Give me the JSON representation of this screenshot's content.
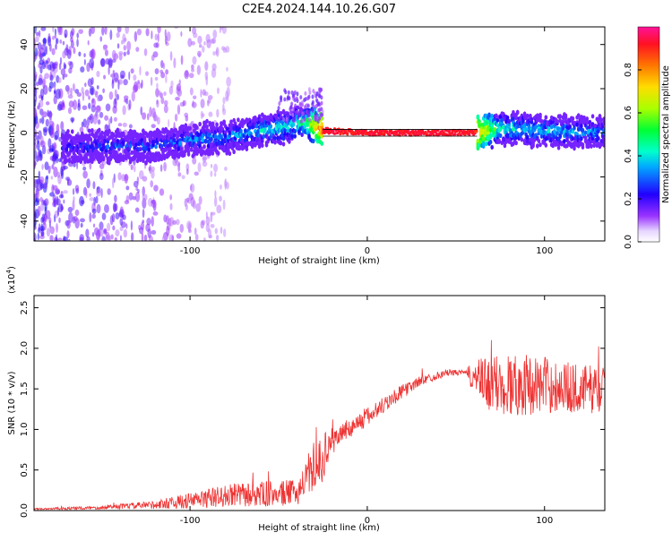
{
  "figure": {
    "title": "C2E4.2024.144.10.26.G07"
  },
  "chart_data": [
    {
      "type": "heatmap",
      "xlabel": "Height of straight line (km)",
      "ylabel": "Frequency (Hz)",
      "xlim": [
        -188,
        134
      ],
      "ylim": [
        -49,
        48
      ],
      "x_ticks": [
        -100,
        0,
        100
      ],
      "y_ticks": [
        -40,
        -20,
        0,
        20,
        40
      ],
      "colorbar": {
        "label": "Normalized spectral amplitude",
        "range": [
          0.0,
          1.0
        ],
        "ticks": [
          "0.0",
          "0.2",
          "0.4",
          "0.6",
          "0.8"
        ],
        "tick_values": [
          0.0,
          0.2,
          0.4,
          0.6,
          0.8
        ],
        "colors": [
          "#ffffff",
          "#7a00ff",
          "#0000ff",
          "#00ffff",
          "#00ff00",
          "#ffff00",
          "#ff8800",
          "#ff0000",
          "#ff00aa"
        ]
      },
      "ridge": {
        "x": [
          -172,
          -150,
          -120,
          -100,
          -80,
          -60,
          -45,
          -35,
          -25,
          0,
          30,
          60,
          75,
          100,
          134
        ],
        "center_freq": [
          -7,
          -6,
          -6,
          -3,
          -2,
          1,
          3,
          5,
          1,
          0,
          0,
          0,
          2,
          1,
          0
        ],
        "peak_amplitude": [
          0.3,
          0.35,
          0.35,
          0.4,
          0.4,
          0.45,
          0.5,
          0.55,
          0.95,
          0.95,
          0.95,
          0.95,
          0.5,
          0.45,
          0.4
        ]
      }
    },
    {
      "type": "line",
      "xlabel": "Height of straight line (km)",
      "ylabel": "SNR (10 * v/v)",
      "y_multiplier": "(x10^4)",
      "y_multiplier_base": "(x10",
      "y_multiplier_exp": "4",
      "y_multiplier_close": ")",
      "xlim": [
        -188,
        134
      ],
      "ylim": [
        0.0,
        2.65
      ],
      "x_ticks": [
        -100,
        0,
        100
      ],
      "y_ticks": [
        "0.0",
        "0.5",
        "1.0",
        "1.5",
        "2.0",
        "2.5"
      ],
      "y_tick_values": [
        0.0,
        0.5,
        1.0,
        1.5,
        2.0,
        2.5
      ],
      "color": "#ee3333",
      "series": [
        {
          "x": [
            -188,
            -160,
            -140,
            -120,
            -100,
            -80,
            -60,
            -40,
            -25,
            -22,
            -15,
            0,
            15,
            30,
            45,
            55,
            60,
            68,
            80,
            100,
            120,
            134
          ],
          "mean": [
            0.02,
            0.03,
            0.05,
            0.07,
            0.12,
            0.18,
            0.2,
            0.22,
            0.65,
            0.8,
            0.95,
            1.15,
            1.4,
            1.6,
            1.7,
            1.7,
            1.65,
            1.55,
            1.55,
            1.55,
            1.5,
            1.5
          ],
          "noise": [
            0.01,
            0.02,
            0.03,
            0.05,
            0.1,
            0.14,
            0.16,
            0.16,
            0.3,
            0.2,
            0.12,
            0.12,
            0.1,
            0.06,
            0.04,
            0.03,
            0.2,
            0.35,
            0.4,
            0.35,
            0.3,
            0.3
          ]
        }
      ]
    }
  ]
}
